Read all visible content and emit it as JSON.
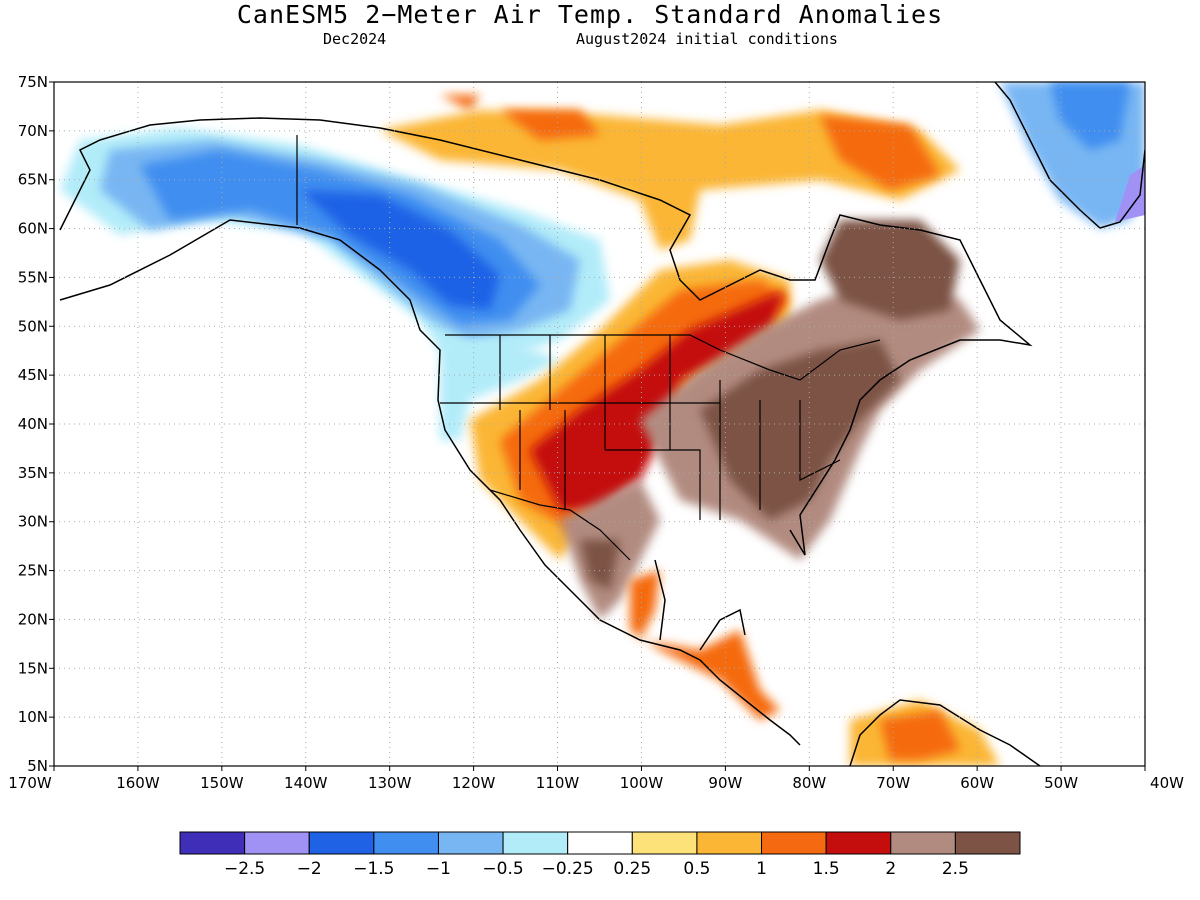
{
  "header": {
    "title": "CanESM5 2−Meter Air Temp. Standard Anomalies",
    "valid_month": "Dec2024",
    "init": "August2024 initial conditions"
  },
  "map": {
    "lat_labels": [
      "75N",
      "70N",
      "65N",
      "60N",
      "55N",
      "50N",
      "45N",
      "40N",
      "35N",
      "30N",
      "25N",
      "20N",
      "15N",
      "10N",
      "5N"
    ],
    "lon_labels": [
      "170W",
      "160W",
      "150W",
      "140W",
      "130W",
      "120W",
      "110W",
      "100W",
      "90W",
      "80W",
      "70W",
      "60W",
      "50W",
      "40W"
    ],
    "colorbar": {
      "colors": [
        "#3f2fb8",
        "#a091f5",
        "#1f62e6",
        "#3f8ef0",
        "#78b6f3",
        "#b2ecf9",
        "#ffffff",
        "#fde27a",
        "#fbb636",
        "#f56a11",
        "#c40d0d",
        "#b28b80",
        "#7c5345"
      ],
      "labels": [
        "−2.5",
        "−2",
        "−1.5",
        "−1",
        "−0.5",
        "−0.25",
        "0.25",
        "0.5",
        "1",
        "1.5",
        "2",
        "2.5"
      ]
    }
  }
}
